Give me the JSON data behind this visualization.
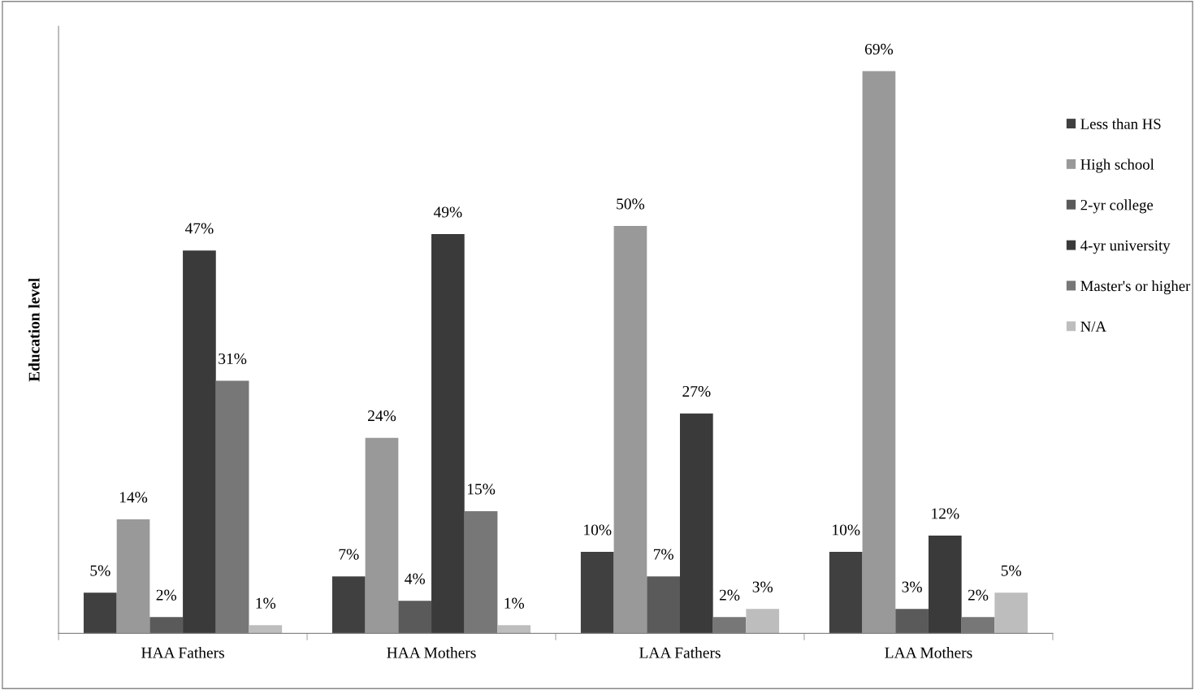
{
  "chart_data": {
    "type": "bar",
    "ylabel": "Education level",
    "categories": [
      "HAA Fathers",
      "HAA Mothers",
      "LAA Fathers",
      "LAA Mothers"
    ],
    "series": [
      {
        "name": "Less than HS",
        "color": "#404040",
        "values": [
          5,
          7,
          10,
          10
        ],
        "value_labels": [
          "5%",
          "7%",
          "10%",
          "10%"
        ]
      },
      {
        "name": "High school",
        "color": "#999999",
        "values": [
          14,
          24,
          50,
          69
        ],
        "value_labels": [
          "14%",
          "24%",
          "50%",
          "69%"
        ]
      },
      {
        "name": "2-yr college",
        "color": "#5a5a5a",
        "values": [
          2,
          4,
          7,
          3
        ],
        "value_labels": [
          "2%",
          "4%",
          "7%",
          "3%"
        ]
      },
      {
        "name": "4-yr university",
        "color": "#3a3a3a",
        "values": [
          47,
          49,
          27,
          12
        ],
        "value_labels": [
          "47%",
          "49%",
          "27%",
          "12%"
        ]
      },
      {
        "name": "Master's or higher",
        "color": "#777777",
        "values": [
          31,
          15,
          2,
          2
        ],
        "value_labels": [
          "31%",
          "15%",
          "2%",
          "2%"
        ]
      },
      {
        "name": "N/A",
        "color": "#bdbdbd",
        "values": [
          1,
          1,
          3,
          5
        ],
        "value_labels": [
          "1%",
          "1%",
          "3%",
          "5%"
        ]
      }
    ],
    "tick_labels": "x",
    "grid": false,
    "legend": "right"
  }
}
